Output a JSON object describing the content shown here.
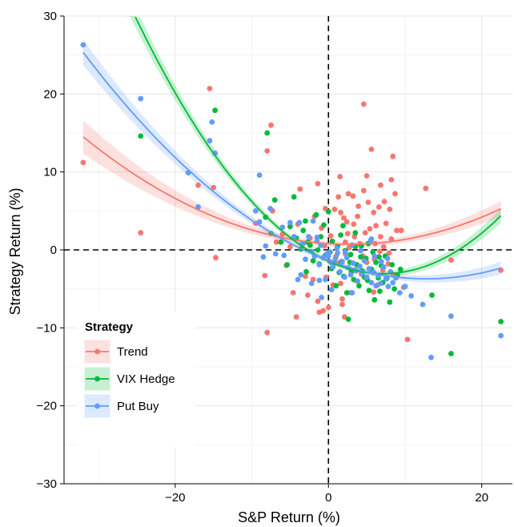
{
  "chart_data": {
    "type": "scatter",
    "title": "",
    "xlabel": "S&P Return (%)",
    "ylabel": "Strategy Return (%)",
    "xlim": [
      -34.5,
      24
    ],
    "ylim": [
      -30,
      30
    ],
    "x_ticks": [
      -20,
      0,
      20
    ],
    "y_ticks": [
      -30,
      -20,
      -10,
      0,
      10,
      20,
      30
    ],
    "x_tick_labels": [
      "−20",
      "0",
      "20"
    ],
    "y_tick_labels": [
      "−30",
      "−20",
      "−10",
      "0",
      "10",
      "20",
      "30"
    ],
    "grid": true,
    "reference_lines": {
      "x": 0,
      "y": 0,
      "style": "dashed"
    },
    "legend": {
      "title": "Strategy",
      "position": "bottom-left",
      "entries": [
        "Trend",
        "VIX Hedge",
        "Put Buy"
      ]
    },
    "series": [
      {
        "name": "Trend",
        "color": "#F8766D",
        "fit": {
          "type": "quadratic",
          "coefficients": [
            0.8,
            -0.06,
            0.0115
          ],
          "band_halfwidth": [
            0.8,
            0.3
          ],
          "x_range": [
            -32,
            22.5
          ]
        },
        "points": [
          [
            -32,
            11.2
          ],
          [
            -24.5,
            2.2
          ],
          [
            -15.5,
            20.7
          ],
          [
            -17,
            8.3
          ],
          [
            -15,
            8
          ],
          [
            -14.7,
            -1
          ],
          [
            -8.3,
            -3.3
          ],
          [
            -8,
            -10.6
          ],
          [
            -8,
            12.7
          ],
          [
            -7.5,
            16
          ],
          [
            -9.5,
            3.4
          ],
          [
            -7.3,
            5
          ],
          [
            -6.8,
            1
          ],
          [
            -6,
            2
          ],
          [
            -5.5,
            -2
          ],
          [
            -5,
            0.4
          ],
          [
            -4.6,
            -5.5
          ],
          [
            -4.2,
            -8.6
          ],
          [
            -4,
            3.3
          ],
          [
            -3.7,
            7.8
          ],
          [
            -3.3,
            0.8
          ],
          [
            -3,
            -3.4
          ],
          [
            -2.7,
            -5.8
          ],
          [
            -2.4,
            1.5
          ],
          [
            -2,
            -3.8
          ],
          [
            -1.8,
            4.3
          ],
          [
            -1.4,
            -6.6
          ],
          [
            -1.2,
            -8
          ],
          [
            -0.9,
            2.8
          ],
          [
            -0.7,
            -7.8
          ],
          [
            -0.5,
            0.5
          ],
          [
            -0.3,
            -3.5
          ],
          [
            0,
            -7.4
          ],
          [
            0.3,
            1.8
          ],
          [
            0.6,
            -4.5
          ],
          [
            0.8,
            5.2
          ],
          [
            1,
            -0.8
          ],
          [
            1.3,
            -1.7
          ],
          [
            1.6,
            -4.3
          ],
          [
            1.8,
            -6.3
          ],
          [
            2,
            4.1
          ],
          [
            2.2,
            -0.5
          ],
          [
            2.5,
            2.1
          ],
          [
            2.7,
            0.3
          ],
          [
            2.9,
            -5.5
          ],
          [
            3.2,
            6.9
          ],
          [
            3.4,
            1.7
          ],
          [
            3.6,
            -2.7
          ],
          [
            3.9,
            5.6
          ],
          [
            4.1,
            0.8
          ],
          [
            4.3,
            -3.1
          ],
          [
            4.6,
            7.6
          ],
          [
            4.8,
            2.2
          ],
          [
            5,
            -1.6
          ],
          [
            5.2,
            6.1
          ],
          [
            5.4,
            2.7
          ],
          [
            5.7,
            -2.8
          ],
          [
            5.9,
            4.8
          ],
          [
            6.1,
            0.8
          ],
          [
            6.4,
            -4.5
          ],
          [
            6.6,
            5.5
          ],
          [
            6.8,
            1.7
          ],
          [
            7.1,
            -2.6
          ],
          [
            7.3,
            6.2
          ],
          [
            7.5,
            3.4
          ],
          [
            7.8,
            -1.8
          ],
          [
            8,
            5.2
          ],
          [
            8.2,
            1.4
          ],
          [
            8.5,
            -3.2
          ],
          [
            8.7,
            7.2
          ],
          [
            8.9,
            2.5
          ],
          [
            1.5,
            9.4
          ],
          [
            1.8,
            -7
          ],
          [
            2.1,
            -8.6
          ],
          [
            4.6,
            18.7
          ],
          [
            5.6,
            12.9
          ],
          [
            8.4,
            12
          ],
          [
            8.2,
            9
          ],
          [
            -1.4,
            8.5
          ],
          [
            2.2,
            1
          ],
          [
            3.3,
            3.3
          ],
          [
            6.2,
            3.1
          ],
          [
            7.2,
            0.4
          ],
          [
            9.5,
            2.5
          ],
          [
            10.3,
            -11.5
          ],
          [
            12.7,
            7.9
          ],
          [
            16,
            -1.3
          ],
          [
            22.5,
            -2.6
          ],
          [
            0.2,
            -1.5
          ],
          [
            1.3,
            6.8
          ],
          [
            2.6,
            7.2
          ],
          [
            3.8,
            4.3
          ],
          [
            5,
            9.5
          ],
          [
            6.8,
            8.3
          ],
          [
            7.9,
            -0.4
          ],
          [
            3.7,
            -4
          ],
          [
            5.9,
            -5.4
          ],
          [
            -0.4,
            5.3
          ],
          [
            1.6,
            4.8
          ],
          [
            4.5,
            -0.8
          ],
          [
            6,
            -1.2
          ],
          [
            2.4,
            3.6
          ],
          [
            6.7,
            -0.2
          ],
          [
            9.8,
            -4.8
          ]
        ]
      },
      {
        "name": "VIX Hedge",
        "color": "#00BA38",
        "fit": {
          "type": "quadratic",
          "coefficients": [
            -1.45,
            -0.45,
            0.0315
          ],
          "band_halfwidth": [
            0.7,
            0.3
          ],
          "x_range": [
            -32,
            22.5
          ]
        },
        "points": [
          [
            -24.5,
            14.6
          ],
          [
            -14.8,
            17.9
          ],
          [
            -8,
            15
          ],
          [
            -8.2,
            4.2
          ],
          [
            -7.5,
            2.1
          ],
          [
            -7,
            6.4
          ],
          [
            -6.2,
            1
          ],
          [
            -5,
            3
          ],
          [
            -4.5,
            6.8
          ],
          [
            -4.2,
            1.5
          ],
          [
            -3.6,
            0.1
          ],
          [
            -3.3,
            2.5
          ],
          [
            -3,
            3.7
          ],
          [
            -2.7,
            1
          ],
          [
            -2.4,
            0.6
          ],
          [
            -2,
            -1.4
          ],
          [
            -1.6,
            4.5
          ],
          [
            -1.4,
            0
          ],
          [
            -1,
            1.7
          ],
          [
            -0.6,
            3.2
          ],
          [
            -0.4,
            -0.7
          ],
          [
            0,
            4.9
          ],
          [
            0.2,
            -0.3
          ],
          [
            0.5,
            1.1
          ],
          [
            0.7,
            -1.7
          ],
          [
            1,
            -4.6
          ],
          [
            1.2,
            0.5
          ],
          [
            1.4,
            -2.9
          ],
          [
            1.7,
            -1.5
          ],
          [
            2,
            -3.4
          ],
          [
            2.2,
            -0.1
          ],
          [
            2.4,
            -5.5
          ],
          [
            2.6,
            -8.9
          ],
          [
            2.8,
            -1.6
          ],
          [
            3,
            -2.8
          ],
          [
            3.3,
            -3.8
          ],
          [
            3.5,
            0.4
          ],
          [
            3.7,
            -1.9
          ],
          [
            4,
            -4.6
          ],
          [
            4.2,
            -0.9
          ],
          [
            4.4,
            -2.7
          ],
          [
            4.7,
            -3.5
          ],
          [
            4.9,
            -1.1
          ],
          [
            5.1,
            -3.9
          ],
          [
            5.3,
            -5.2
          ],
          [
            5.6,
            -2.5
          ],
          [
            5.8,
            -0.3
          ],
          [
            6,
            -6.4
          ],
          [
            6.2,
            -1.6
          ],
          [
            6.5,
            -3.6
          ],
          [
            6.7,
            -5.3
          ],
          [
            6.9,
            -2
          ],
          [
            7.1,
            -4.2
          ],
          [
            7.4,
            -0.8
          ],
          [
            7.6,
            -3.7
          ],
          [
            8,
            -6.7
          ],
          [
            8.3,
            -1.9
          ],
          [
            8.6,
            -5
          ],
          [
            9,
            -3.2
          ],
          [
            9.4,
            -2.5
          ],
          [
            2.9,
            -0.6
          ],
          [
            1.9,
            3.1
          ],
          [
            0.4,
            -2.4
          ],
          [
            13.5,
            -5.8
          ],
          [
            16,
            -13.3
          ],
          [
            22.5,
            -9.2
          ],
          [
            3.5,
            2.2
          ],
          [
            5.2,
            0.8
          ],
          [
            6.6,
            -0.9
          ],
          [
            -1.2,
            -1.8
          ],
          [
            -5.4,
            -1.9
          ],
          [
            -2.9,
            -2.8
          ],
          [
            1.6,
            1.9
          ],
          [
            4.3,
            0.5
          ]
        ]
      },
      {
        "name": "Put Buy",
        "color": "#619CFF",
        "fit": {
          "type": "quadratic",
          "coefficients": [
            -1.35,
            -0.37,
            0.0145
          ],
          "band_halfwidth": [
            0.6,
            0.3
          ],
          "x_range": [
            -32,
            22.5
          ]
        },
        "points": [
          [
            -32,
            26.3
          ],
          [
            -24.5,
            19.4
          ],
          [
            -15.2,
            16.4
          ],
          [
            -15.5,
            14
          ],
          [
            -14.8,
            12.4
          ],
          [
            -18.3,
            9.9
          ],
          [
            -17,
            5.5
          ],
          [
            -9,
            9.6
          ],
          [
            -9.5,
            5
          ],
          [
            -9,
            3.6
          ],
          [
            -8.2,
            0.5
          ],
          [
            -7.6,
            5.3
          ],
          [
            -6.9,
            -0.5
          ],
          [
            -6,
            2.9
          ],
          [
            -5,
            3.5
          ],
          [
            -4.5,
            1.7
          ],
          [
            -4,
            -3.8
          ],
          [
            -3.8,
            3.5
          ],
          [
            -3.4,
            0.8
          ],
          [
            -3,
            -1.2
          ],
          [
            -2.6,
            1.7
          ],
          [
            -2.2,
            -0.2
          ],
          [
            -2,
            3.7
          ],
          [
            -1.8,
            -0.8
          ],
          [
            -1.5,
            1.1
          ],
          [
            -1.2,
            -1.9
          ],
          [
            -1,
            0.6
          ],
          [
            -0.7,
            -1
          ],
          [
            -0.4,
            -3.8
          ],
          [
            -0.2,
            -0.5
          ],
          [
            0,
            -0.8
          ],
          [
            0.3,
            -1.6
          ],
          [
            0.6,
            -2.2
          ],
          [
            0.9,
            -1.1
          ],
          [
            1.2,
            -0.4
          ],
          [
            1.5,
            -2.8
          ],
          [
            1.8,
            -1.5
          ],
          [
            2.1,
            -3.5
          ],
          [
            2.4,
            -1
          ],
          [
            2.6,
            -2.3
          ],
          [
            2.9,
            -3.2
          ],
          [
            3.2,
            -1.7
          ],
          [
            3.5,
            -2.6
          ],
          [
            3.8,
            -4
          ],
          [
            4.1,
            -2.1
          ],
          [
            4.4,
            -3
          ],
          [
            4.7,
            -1.4
          ],
          [
            5,
            -3.5
          ],
          [
            5.3,
            -2.4
          ],
          [
            5.6,
            -4.2
          ],
          [
            5.9,
            -2.9
          ],
          [
            6.2,
            -4.6
          ],
          [
            6.5,
            -3.3
          ],
          [
            6.8,
            -4.3
          ],
          [
            7.2,
            -2.2
          ],
          [
            7.5,
            -3.7
          ],
          [
            7.8,
            -4.7
          ],
          [
            8.1,
            -2.8
          ],
          [
            8.4,
            -4.2
          ],
          [
            8.8,
            -3.6
          ],
          [
            9.3,
            -5.5
          ],
          [
            10,
            -4.7
          ],
          [
            10.8,
            -5.9
          ],
          [
            12.3,
            -7
          ],
          [
            13.4,
            -13.8
          ],
          [
            16,
            -8.5
          ],
          [
            22.5,
            -11
          ],
          [
            5.5,
            1.2
          ],
          [
            3.1,
            0.6
          ],
          [
            -1.5,
            1.6
          ],
          [
            0.1,
            -0.3
          ],
          [
            1.1,
            0.2
          ],
          [
            5.6,
            1.4
          ],
          [
            4.2,
            -0.1
          ],
          [
            2.2,
            -0.3
          ],
          [
            6,
            -0.8
          ],
          [
            6.9,
            -1.5
          ],
          [
            7.7,
            -1.1
          ],
          [
            -3.6,
            -3.2
          ],
          [
            -2.2,
            -4.3
          ],
          [
            -1.2,
            -3.9
          ],
          [
            -8.5,
            -0.9
          ],
          [
            -5.8,
            -0.7
          ],
          [
            -0.9,
            -6.1
          ],
          [
            0.4,
            -5.1
          ],
          [
            3.1,
            -5.5
          ]
        ]
      }
    ]
  }
}
